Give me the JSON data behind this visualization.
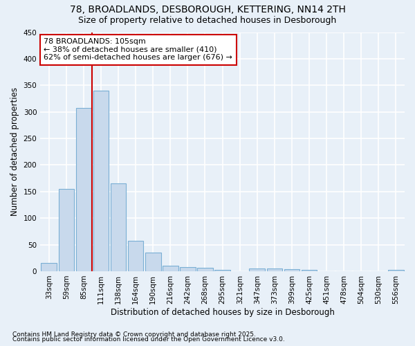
{
  "title1": "78, BROADLANDS, DESBOROUGH, KETTERING, NN14 2TH",
  "title2": "Size of property relative to detached houses in Desborough",
  "xlabel": "Distribution of detached houses by size in Desborough",
  "ylabel": "Number of detached properties",
  "footer1": "Contains HM Land Registry data © Crown copyright and database right 2025.",
  "footer2": "Contains public sector information licensed under the Open Government Licence v3.0.",
  "categories": [
    "33sqm",
    "59sqm",
    "85sqm",
    "111sqm",
    "138sqm",
    "164sqm",
    "190sqm",
    "216sqm",
    "242sqm",
    "268sqm",
    "295sqm",
    "321sqm",
    "347sqm",
    "373sqm",
    "399sqm",
    "425sqm",
    "451sqm",
    "478sqm",
    "504sqm",
    "530sqm",
    "556sqm"
  ],
  "values": [
    15,
    155,
    308,
    340,
    165,
    57,
    35,
    10,
    8,
    6,
    2,
    0,
    5,
    5,
    4,
    2,
    0,
    0,
    0,
    0,
    3
  ],
  "bar_color": "#c8d9ec",
  "bar_edge_color": "#7aafd4",
  "red_line_x": 2.5,
  "annotation_title": "78 BROADLANDS: 105sqm",
  "annotation_line2": "← 38% of detached houses are smaller (410)",
  "annotation_line3": "62% of semi-detached houses are larger (676) →",
  "ylim": [
    0,
    450
  ],
  "yticks": [
    0,
    50,
    100,
    150,
    200,
    250,
    300,
    350,
    400,
    450
  ],
  "background_color": "#e8f0f8",
  "grid_color": "#ffffff",
  "annotation_box_color": "#ffffff",
  "annotation_border_color": "#cc0000",
  "red_line_color": "#cc0000",
  "title1_fontsize": 10,
  "title2_fontsize": 9,
  "axis_label_fontsize": 8.5,
  "tick_fontsize": 7.5,
  "annotation_fontsize": 8,
  "footer_fontsize": 6.5
}
